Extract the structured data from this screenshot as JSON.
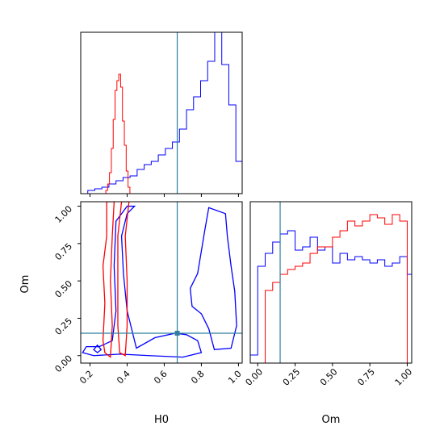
{
  "chart_data": {
    "type": "corner",
    "colors": {
      "series_a": "#0000ff",
      "series_b": "#ff0000",
      "truth": "#2f7f9f"
    },
    "truth": {
      "H0": 0.67,
      "Om": 0.15
    },
    "axis_labels": {
      "H0": "H0",
      "Om": "Om"
    },
    "panels": [
      {
        "id": "H0-hist",
        "type": "step-histogram",
        "x": "H0",
        "xlim": [
          0.15,
          1.02
        ],
        "ylim": [
          0,
          1.0
        ],
        "x_ticks": [
          0.2,
          0.4,
          0.6,
          0.8,
          1.0
        ],
        "x_tick_labels_shown": false,
        "series": [
          {
            "color": "blue",
            "bin_edges": [
              0.15,
              0.188,
              0.226,
              0.264,
              0.302,
              0.34,
              0.378,
              0.416,
              0.454,
              0.492,
              0.53,
              0.568,
              0.606,
              0.644,
              0.682,
              0.72,
              0.758,
              0.796,
              0.834,
              0.872,
              0.91,
              0.948,
              0.986,
              1.02
            ],
            "heights": [
              0.0,
              0.02,
              0.03,
              0.04,
              0.06,
              0.08,
              0.1,
              0.11,
              0.15,
              0.18,
              0.2,
              0.24,
              0.28,
              0.32,
              0.4,
              0.52,
              0.6,
              0.7,
              0.82,
              1.0,
              0.8,
              0.55,
              0.2
            ]
          },
          {
            "color": "red",
            "bin_edges": [
              0.285,
              0.295,
              0.305,
              0.315,
              0.325,
              0.335,
              0.345,
              0.355,
              0.365,
              0.375,
              0.385,
              0.395,
              0.405,
              0.415
            ],
            "heights": [
              0.02,
              0.06,
              0.13,
              0.28,
              0.46,
              0.64,
              0.7,
              0.74,
              0.66,
              0.45,
              0.3,
              0.14,
              0.04
            ]
          }
        ]
      },
      {
        "id": "H0-Om-2d",
        "type": "contour",
        "x": "H0",
        "y": "Om",
        "xlim": [
          0.15,
          1.02
        ],
        "ylim": [
          -0.05,
          1.03
        ],
        "x_ticks": [
          0.2,
          0.4,
          0.6,
          0.8,
          1.0
        ],
        "x_tick_labels": [
          "0.2",
          "0.4",
          "0.6",
          "0.8",
          "1.0"
        ],
        "y_ticks": [
          0.0,
          0.25,
          0.5,
          0.75,
          1.0
        ],
        "y_tick_labels": [
          "0.00",
          "0.25",
          "0.50",
          "0.75",
          "1.00"
        ],
        "contours": [
          {
            "color": "blue",
            "points": [
              [
                0.16,
                0.02
              ],
              [
                0.22,
                0.0
              ],
              [
                0.36,
                0.01
              ],
              [
                0.52,
                0.0
              ],
              [
                0.7,
                -0.01
              ],
              [
                0.8,
                0.02
              ],
              [
                0.78,
                0.1
              ],
              [
                0.72,
                0.14
              ],
              [
                0.66,
                0.15
              ],
              [
                0.55,
                0.12
              ],
              [
                0.45,
                0.05
              ],
              [
                0.4,
                0.3
              ],
              [
                0.38,
                0.55
              ],
              [
                0.37,
                0.8
              ],
              [
                0.4,
                0.95
              ],
              [
                0.44,
                1.0
              ],
              [
                0.4,
                1.0
              ],
              [
                0.34,
                0.9
              ],
              [
                0.33,
                0.6
              ],
              [
                0.34,
                0.3
              ],
              [
                0.32,
                0.1
              ],
              [
                0.25,
                0.06
              ],
              [
                0.18,
                0.06
              ],
              [
                0.16,
                0.02
              ]
            ]
          },
          {
            "color": "blue",
            "points": [
              [
                0.84,
                0.99
              ],
              [
                0.93,
                0.95
              ],
              [
                0.94,
                0.8
              ],
              [
                0.96,
                0.6
              ],
              [
                0.98,
                0.43
              ],
              [
                0.99,
                0.2
              ],
              [
                0.96,
                0.05
              ],
              [
                0.87,
                0.04
              ],
              [
                0.84,
                0.18
              ],
              [
                0.8,
                0.28
              ],
              [
                0.75,
                0.33
              ],
              [
                0.74,
                0.45
              ],
              [
                0.78,
                0.55
              ],
              [
                0.8,
                0.7
              ],
              [
                0.82,
                0.85
              ],
              [
                0.84,
                0.99
              ]
            ]
          },
          {
            "color": "blue",
            "points": [
              [
                0.22,
                0.04
              ],
              [
                0.24,
                0.07
              ],
              [
                0.26,
                0.04
              ],
              [
                0.24,
                0.02
              ],
              [
                0.22,
                0.04
              ]
            ]
          },
          {
            "color": "red",
            "points": [
              [
                0.28,
                0.02
              ],
              [
                0.31,
                -0.01
              ],
              [
                0.32,
                0.2
              ],
              [
                0.31,
                0.5
              ],
              [
                0.32,
                0.8
              ],
              [
                0.33,
                1.03
              ],
              [
                0.29,
                1.03
              ],
              [
                0.29,
                0.8
              ],
              [
                0.27,
                0.6
              ],
              [
                0.28,
                0.35
              ],
              [
                0.27,
                0.1
              ],
              [
                0.28,
                0.02
              ]
            ]
          },
          {
            "color": "red",
            "points": [
              [
                0.36,
                0.02
              ],
              [
                0.39,
                0.0
              ],
              [
                0.4,
                0.2
              ],
              [
                0.4,
                0.5
              ],
              [
                0.39,
                0.8
              ],
              [
                0.41,
                1.03
              ],
              [
                0.37,
                1.03
              ],
              [
                0.35,
                0.8
              ],
              [
                0.35,
                0.5
              ],
              [
                0.35,
                0.2
              ],
              [
                0.36,
                0.02
              ]
            ]
          }
        ]
      },
      {
        "id": "Om-hist",
        "type": "step-histogram",
        "x": "Om",
        "xlim": [
          -0.05,
          1.03
        ],
        "ylim": [
          0,
          1.0
        ],
        "x_ticks": [
          0.0,
          0.25,
          0.5,
          0.75,
          1.0
        ],
        "x_tick_labels": [
          "0.00",
          "0.25",
          "0.50",
          "0.75",
          "1.00"
        ],
        "series": [
          {
            "color": "blue",
            "bin_edges": [
              -0.05,
              0.0,
              0.05,
              0.1,
              0.15,
              0.2,
              0.25,
              0.3,
              0.35,
              0.4,
              0.45,
              0.5,
              0.55,
              0.6,
              0.65,
              0.7,
              0.75,
              0.8,
              0.85,
              0.9,
              0.95,
              1.0,
              1.03
            ],
            "heights": [
              0.05,
              0.6,
              0.68,
              0.75,
              0.8,
              0.82,
              0.7,
              0.72,
              0.78,
              0.7,
              0.72,
              0.62,
              0.68,
              0.64,
              0.66,
              0.64,
              0.62,
              0.64,
              0.6,
              0.62,
              0.66,
              0.55
            ]
          },
          {
            "color": "red",
            "bin_edges": [
              0.0,
              0.05,
              0.1,
              0.15,
              0.2,
              0.25,
              0.3,
              0.35,
              0.4,
              0.45,
              0.5,
              0.55,
              0.6,
              0.65,
              0.7,
              0.75,
              0.8,
              0.85,
              0.9,
              0.95,
              1.0
            ],
            "heights": [
              0.0,
              0.45,
              0.5,
              0.55,
              0.58,
              0.6,
              0.62,
              0.68,
              0.72,
              0.72,
              0.78,
              0.82,
              0.88,
              0.85,
              0.88,
              0.92,
              0.9,
              0.86,
              0.92,
              0.88
            ]
          }
        ]
      }
    ]
  }
}
